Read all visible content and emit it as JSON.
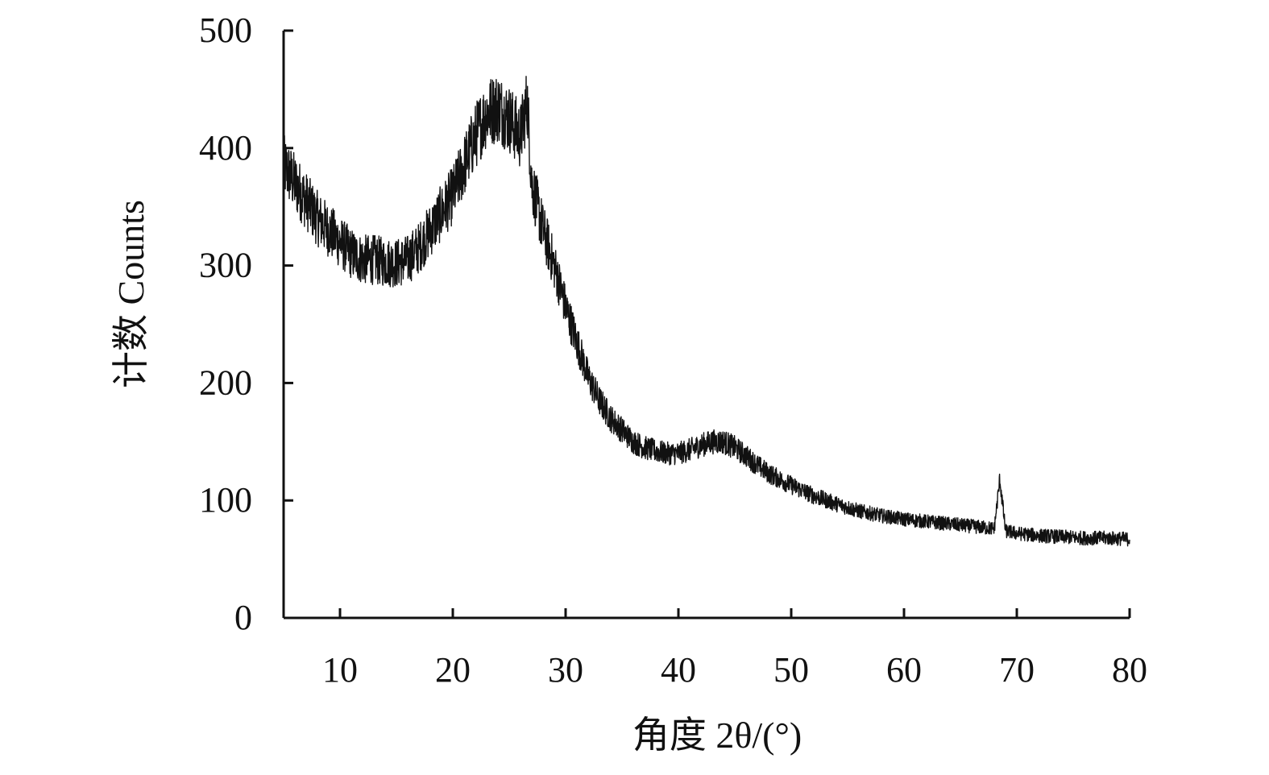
{
  "chart_data": {
    "type": "line",
    "xlabel": "角度 2θ/(°)",
    "ylabel": "计数 Counts",
    "xlim": [
      5,
      80
    ],
    "ylim": [
      0,
      500
    ],
    "x_ticks": [
      10,
      20,
      30,
      40,
      50,
      60,
      70,
      80
    ],
    "y_ticks": [
      0,
      100,
      200,
      300,
      400,
      500
    ],
    "grid": false,
    "series": [
      {
        "color": "#111111",
        "x": [
          5,
          6,
          7,
          8,
          9,
          10,
          11,
          12,
          13,
          14,
          15,
          16,
          17,
          18,
          19,
          20,
          21,
          22,
          23,
          24,
          25,
          26,
          26.6,
          27,
          28,
          29,
          30,
          31,
          32,
          33,
          34,
          35,
          36,
          37,
          38,
          39,
          40,
          41,
          42,
          43,
          44,
          45,
          46,
          47,
          48,
          50,
          52,
          54,
          56,
          58,
          60,
          62,
          64,
          66,
          68,
          68.5,
          69,
          70,
          72,
          74,
          76,
          78,
          80
        ],
        "y": [
          385,
          370,
          355,
          340,
          330,
          320,
          310,
          305,
          305,
          303,
          302,
          305,
          315,
          330,
          345,
          360,
          385,
          410,
          430,
          435,
          425,
          410,
          440,
          370,
          330,
          300,
          265,
          235,
          205,
          185,
          170,
          160,
          150,
          145,
          142,
          140,
          140,
          143,
          147,
          150,
          150,
          145,
          138,
          130,
          123,
          113,
          104,
          97,
          91,
          87,
          84,
          82,
          80,
          78,
          76,
          118,
          74,
          72,
          70,
          69,
          68,
          68,
          67
        ]
      }
    ]
  }
}
